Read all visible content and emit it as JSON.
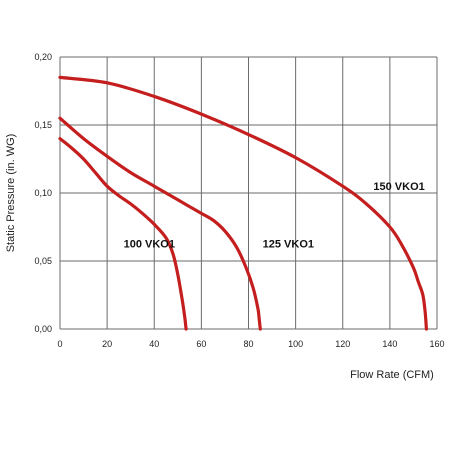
{
  "chart_data": {
    "type": "line",
    "title": "",
    "xlabel": "Flow Rate (CFM)",
    "ylabel": "Static Pressure (in. WG)",
    "xlim": [
      0,
      160
    ],
    "ylim": [
      0,
      0.2
    ],
    "x_ticks": [
      0,
      20,
      40,
      60,
      80,
      100,
      120,
      140,
      160
    ],
    "y_ticks": [
      0,
      0.05,
      0.1,
      0.15,
      0.2
    ],
    "x_tick_labels": [
      "0",
      "20",
      "40",
      "60",
      "80",
      "100",
      "120",
      "140",
      "160"
    ],
    "y_tick_labels": [
      "0,00",
      "0,05",
      "0,10",
      "0,15",
      "0,20"
    ],
    "grid": true,
    "series": [
      {
        "name": "100 VKO1",
        "color": "#c41e1e",
        "points": [
          [
            0,
            0.14
          ],
          [
            5,
            0.133
          ],
          [
            10,
            0.125
          ],
          [
            15,
            0.115
          ],
          [
            20,
            0.105
          ],
          [
            25,
            0.098
          ],
          [
            30,
            0.092
          ],
          [
            35,
            0.085
          ],
          [
            40,
            0.077
          ],
          [
            45,
            0.067
          ],
          [
            48,
            0.055
          ],
          [
            50,
            0.04
          ],
          [
            52,
            0.02
          ],
          [
            53,
            0.008
          ],
          [
            53.5,
            0.0
          ]
        ]
      },
      {
        "name": "125 VKO1",
        "color": "#c41e1e",
        "points": [
          [
            0,
            0.155
          ],
          [
            10,
            0.14
          ],
          [
            20,
            0.127
          ],
          [
            30,
            0.115
          ],
          [
            40,
            0.105
          ],
          [
            50,
            0.095
          ],
          [
            60,
            0.085
          ],
          [
            65,
            0.08
          ],
          [
            70,
            0.072
          ],
          [
            75,
            0.06
          ],
          [
            79,
            0.045
          ],
          [
            82,
            0.03
          ],
          [
            84,
            0.015
          ],
          [
            84.5,
            0.008
          ],
          [
            85,
            0.0
          ]
        ]
      },
      {
        "name": "150 VKO1",
        "color": "#c41e1e",
        "points": [
          [
            0,
            0.185
          ],
          [
            20,
            0.181
          ],
          [
            40,
            0.171
          ],
          [
            60,
            0.158
          ],
          [
            80,
            0.143
          ],
          [
            100,
            0.126
          ],
          [
            120,
            0.105
          ],
          [
            130,
            0.092
          ],
          [
            140,
            0.075
          ],
          [
            145,
            0.062
          ],
          [
            150,
            0.045
          ],
          [
            152,
            0.035
          ],
          [
            154,
            0.025
          ],
          [
            155,
            0.012
          ],
          [
            155.5,
            0.0
          ]
        ]
      }
    ],
    "annotations": [
      {
        "text": "100 VKO1",
        "x": 27,
        "y": 0.063,
        "series": "100 VKO1"
      },
      {
        "text": "125 VKO1",
        "x": 86,
        "y": 0.063,
        "series": "125 VKO1"
      },
      {
        "text": "150 VKO1",
        "x": 133,
        "y": 0.105,
        "series": "150 VKO1"
      }
    ]
  }
}
